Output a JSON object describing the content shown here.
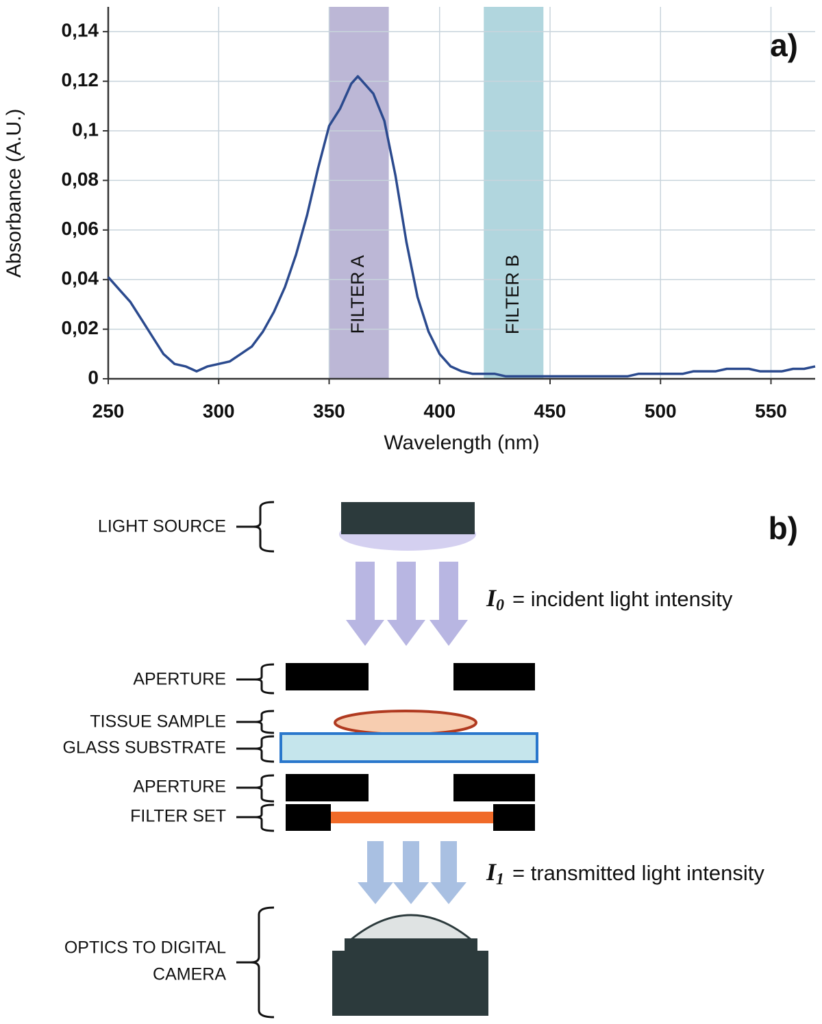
{
  "chart_data": {
    "type": "line",
    "xlabel": "Wavelength (nm)",
    "ylabel": "Absorbance (A.U.)",
    "annotation": "a)",
    "x": [
      250,
      255,
      260,
      265,
      270,
      275,
      280,
      285,
      290,
      295,
      300,
      305,
      310,
      315,
      320,
      325,
      330,
      335,
      340,
      345,
      350,
      355,
      360,
      363,
      365,
      370,
      375,
      380,
      385,
      390,
      395,
      400,
      405,
      410,
      415,
      420,
      425,
      430,
      435,
      440,
      445,
      450,
      455,
      460,
      465,
      470,
      475,
      480,
      485,
      490,
      495,
      500,
      505,
      510,
      515,
      520,
      525,
      530,
      535,
      540,
      545,
      550,
      555,
      560,
      565,
      570
    ],
    "values": [
      0.041,
      0.036,
      0.031,
      0.024,
      0.017,
      0.01,
      0.006,
      0.005,
      0.003,
      0.005,
      0.006,
      0.007,
      0.01,
      0.013,
      0.019,
      0.027,
      0.037,
      0.05,
      0.066,
      0.085,
      0.102,
      0.109,
      0.119,
      0.122,
      0.12,
      0.115,
      0.104,
      0.082,
      0.055,
      0.033,
      0.019,
      0.01,
      0.005,
      0.003,
      0.002,
      0.002,
      0.002,
      0.001,
      0.001,
      0.001,
      0.001,
      0.001,
      0.001,
      0.001,
      0.001,
      0.001,
      0.001,
      0.001,
      0.001,
      0.002,
      0.002,
      0.002,
      0.002,
      0.002,
      0.003,
      0.003,
      0.003,
      0.004,
      0.004,
      0.004,
      0.003,
      0.003,
      0.003,
      0.004,
      0.004,
      0.005
    ],
    "color": "#2b4a8e",
    "xlim": [
      250,
      570
    ],
    "xticks": [
      250,
      300,
      350,
      400,
      450,
      500,
      550
    ],
    "ylim": [
      0,
      0.15
    ],
    "yticks": [
      0,
      {
        "value": 0.02,
        "label": "0,02"
      },
      {
        "value": 0.04,
        "label": "0,04"
      },
      {
        "value": 0.06,
        "label": "0,06"
      },
      {
        "value": 0.08,
        "label": "0,08"
      },
      {
        "value": 0.1,
        "label": "0,1"
      },
      {
        "value": 0.12,
        "label": "0,12"
      },
      {
        "value": 0.14,
        "label": "0,14"
      }
    ],
    "grid": true,
    "bands": [
      {
        "label": "FILTER A",
        "x": [
          350,
          377
        ],
        "color": "#b5afd2"
      },
      {
        "label": "FILTER B",
        "x": [
          420,
          447
        ],
        "color": "#a9d2da"
      }
    ]
  },
  "diagram": {
    "label": "b)",
    "parts": [
      "LIGHT SOURCE",
      "APERTURE",
      "TISSUE SAMPLE",
      "GLASS SUBSTRATE",
      "APERTURE",
      "FILTER SET",
      "OPTICS TO DIGITAL",
      "CAMERA"
    ],
    "incident": {
      "symbol": "I",
      "sub": "0",
      "text": "= incident light intensity"
    },
    "transmitted": {
      "symbol": "I",
      "sub": "1",
      "text": "= transmitted light intensity"
    }
  }
}
